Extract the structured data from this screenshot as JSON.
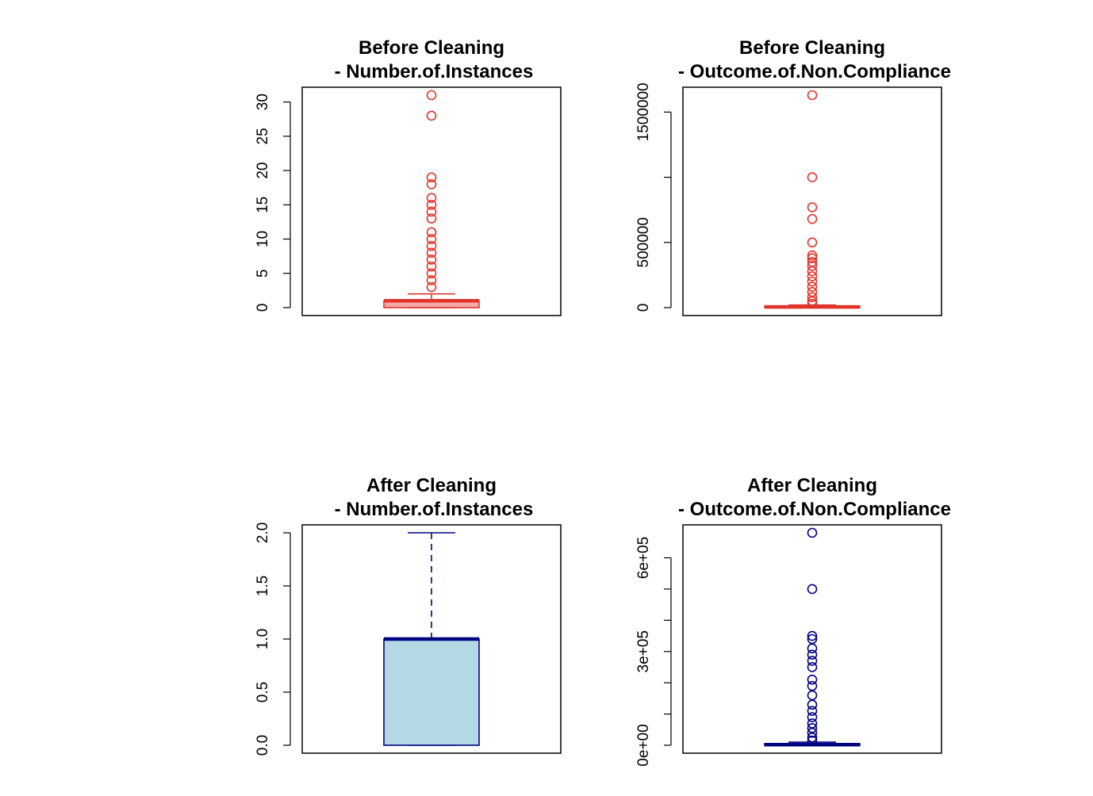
{
  "chart_data": [
    {
      "type": "boxplot",
      "title": "Before Cleaning",
      "subtitle": "- Number.of.Instances",
      "ylim": [
        0,
        31
      ],
      "yticks": [
        0,
        5,
        10,
        15,
        20,
        25,
        30
      ],
      "ytick_labels": [
        "0",
        "5",
        "10",
        "15",
        "20",
        "25",
        "30"
      ],
      "box": {
        "min": 0,
        "q1": 0,
        "median": 1,
        "q3": 1,
        "max": 2
      },
      "outliers": [
        3,
        4,
        5,
        6,
        7,
        8,
        9,
        10,
        11,
        13,
        14,
        15,
        16,
        18,
        19,
        28,
        31
      ],
      "color": "#e0352b",
      "fill": "#f4a9a8",
      "whisker_dashed": false
    },
    {
      "type": "boxplot",
      "title": "Before Cleaning",
      "subtitle": "- Outcome.of.Non.Compliance",
      "ylim": [
        0,
        1630000
      ],
      "yticks": [
        0,
        500000,
        1000000,
        1500000
      ],
      "ytick_labels": [
        "0",
        "500000",
        "",
        "1500000"
      ],
      "box": {
        "min": 0,
        "q1": 0,
        "median": 5000,
        "q3": 10000,
        "max": 20000
      },
      "outliers": [
        30000,
        50000,
        80000,
        120000,
        160000,
        200000,
        240000,
        280000,
        320000,
        350000,
        380000,
        400000,
        500000,
        680000,
        770000,
        1000000,
        1630000
      ],
      "color": "#e0352b",
      "fill": "#f4a9a8",
      "whisker_dashed": false
    },
    {
      "type": "boxplot",
      "title": "After Cleaning",
      "subtitle": "- Number.of.Instances",
      "ylim": [
        0,
        2
      ],
      "yticks": [
        0,
        0.5,
        1,
        1.5,
        2
      ],
      "ytick_labels": [
        "0.0",
        "0.5",
        "1.0",
        "1.5",
        "2.0"
      ],
      "box": {
        "min": 0,
        "q1": 0,
        "median": 1,
        "q3": 1,
        "max": 2
      },
      "outliers": [],
      "color": "#000080",
      "fill": "#b5d8e5",
      "whisker_dashed": true
    },
    {
      "type": "boxplot",
      "title": "After Cleaning",
      "subtitle": "- Outcome.of.Non.Compliance",
      "ylim": [
        0,
        680000
      ],
      "yticks": [
        0,
        100000,
        200000,
        300000,
        400000,
        500000,
        600000
      ],
      "ytick_labels": [
        "0e+00",
        "",
        "",
        "3e+05",
        "",
        "",
        "6e+05"
      ],
      "box": {
        "min": 0,
        "q1": 0,
        "median": 2000,
        "q3": 5000,
        "max": 10000
      },
      "outliers": [
        15000,
        25000,
        40000,
        55000,
        70000,
        90000,
        110000,
        130000,
        160000,
        190000,
        210000,
        250000,
        270000,
        290000,
        310000,
        340000,
        350000,
        500000,
        680000
      ],
      "color": "#000080",
      "fill": "#b5d8e5",
      "whisker_dashed": false
    }
  ]
}
